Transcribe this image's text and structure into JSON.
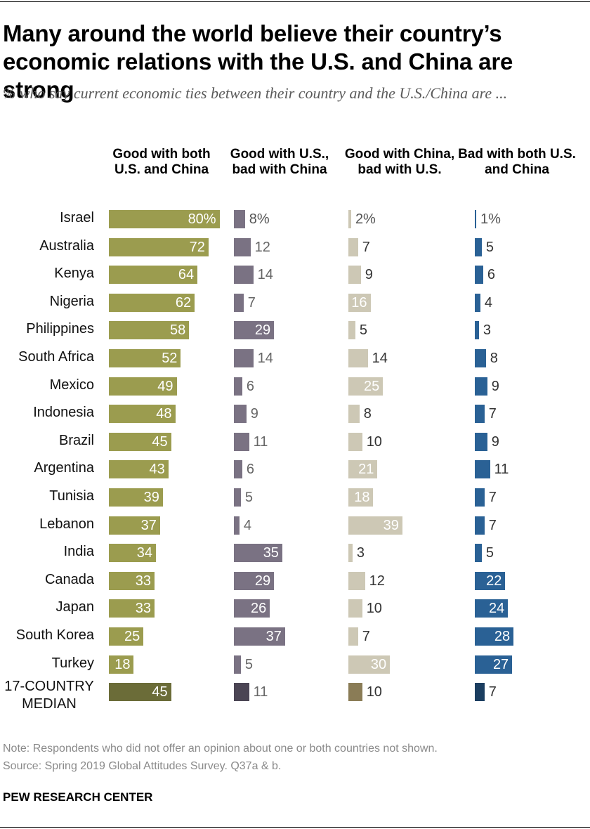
{
  "header": {
    "title": "Many around the world believe their country’s economic relations with the U.S. and China are strong",
    "subtitle": "% who say current economic ties between their country and the U.S./China are ..."
  },
  "footer": {
    "note": "Note: Respondents who did not offer an opinion about one or both countries not shown.",
    "source": "Source: Spring 2019 Global Attitudes Survey. Q37a & b.",
    "organization": "PEW RESEARCH CENTER"
  },
  "colors": {
    "good_both": "#9b9c4f",
    "good_us_bad_china": "#7a7283",
    "good_china_bad_us": "#cdc8b5",
    "bad_both": "#2a6195",
    "median_good_both": "#6b6c38",
    "median_good_us_bad_china": "#4b4554",
    "median_good_china_bad_us": "#8a7c56",
    "median_bad_both": "#1b3e60"
  },
  "chart_data": {
    "type": "bar",
    "orientation": "horizontal",
    "value_suffix_first_row": "%",
    "categories": [
      "Israel",
      "Australia",
      "Kenya",
      "Nigeria",
      "Philippines",
      "South Africa",
      "Mexico",
      "Indonesia",
      "Brazil",
      "Argentina",
      "Tunisia",
      "Lebanon",
      "India",
      "Canada",
      "Japan",
      "South Korea",
      "Turkey",
      "17-COUNTRY MEDIAN"
    ],
    "series": [
      {
        "name": "Good with both U.S. and China",
        "values": [
          80,
          72,
          64,
          62,
          58,
          52,
          49,
          48,
          45,
          43,
          39,
          37,
          34,
          33,
          33,
          25,
          18,
          45
        ]
      },
      {
        "name": "Good with U.S., bad with China",
        "values": [
          8,
          12,
          14,
          7,
          29,
          14,
          6,
          9,
          11,
          6,
          5,
          4,
          35,
          29,
          26,
          37,
          5,
          11
        ]
      },
      {
        "name": "Good with China, bad with U.S.",
        "values": [
          2,
          7,
          9,
          16,
          5,
          14,
          25,
          8,
          10,
          21,
          18,
          39,
          3,
          12,
          10,
          7,
          30,
          10
        ]
      },
      {
        "name": "Bad with both U.S. and China",
        "values": [
          1,
          5,
          6,
          4,
          3,
          8,
          9,
          7,
          9,
          11,
          7,
          7,
          5,
          22,
          24,
          28,
          27,
          7
        ]
      }
    ],
    "title": "Many around the world believe their country’s economic relations with the U.S. and China are strong",
    "xlabel": "",
    "ylabel": "",
    "xlim": [
      0,
      100
    ],
    "grid": false,
    "legend": "column headers"
  }
}
